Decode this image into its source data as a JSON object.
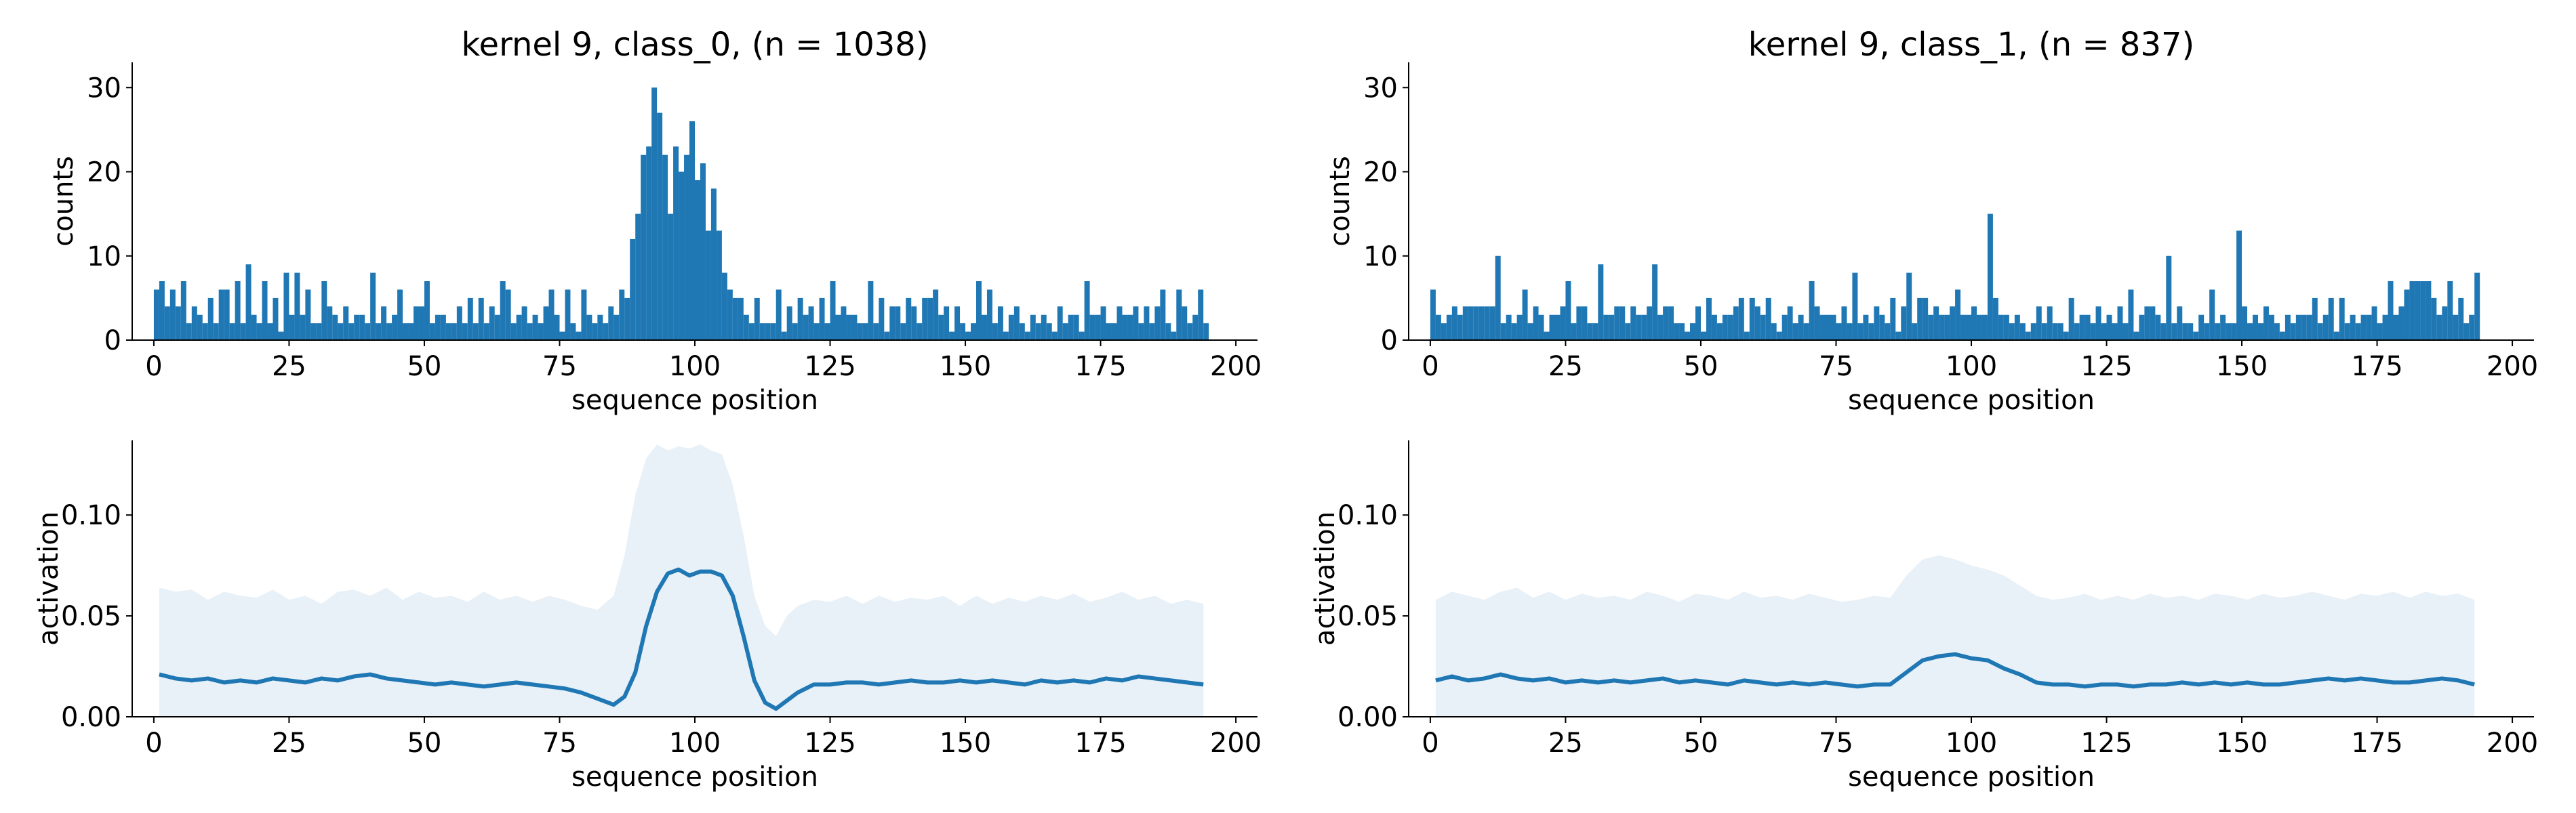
{
  "chart_data": [
    {
      "type": "bar",
      "title": "kernel 9, class_0, (n = 1038)",
      "xlabel": "sequence position",
      "ylabel": "counts",
      "xlim": [
        -4,
        204
      ],
      "ylim": [
        0,
        33
      ],
      "xticks": [
        "0",
        "25",
        "50",
        "75",
        "100",
        "125",
        "150",
        "175",
        "200"
      ],
      "yticks": [
        "0",
        "10",
        "20",
        "30"
      ],
      "grid": false,
      "color": "#1f77b4",
      "x_start": 0,
      "bin_width": 1,
      "values": [
        6,
        7,
        4,
        6,
        4,
        7,
        2,
        4,
        3,
        2,
        5,
        2,
        6,
        6,
        2,
        7,
        2,
        9,
        3,
        2,
        7,
        2,
        5,
        1,
        8,
        3,
        8,
        3,
        6,
        2,
        2,
        7,
        4,
        3,
        2,
        4,
        2,
        3,
        3,
        2,
        8,
        2,
        4,
        2,
        3,
        6,
        2,
        2,
        4,
        4,
        7,
        2,
        3,
        3,
        2,
        2,
        4,
        2,
        5,
        2,
        5,
        2,
        4,
        3,
        7,
        6,
        2,
        3,
        4,
        2,
        3,
        2,
        4,
        6,
        3,
        1,
        6,
        2,
        1,
        6,
        3,
        2,
        3,
        2,
        4,
        3,
        6,
        5,
        12,
        15,
        22,
        23,
        30,
        27,
        22,
        15,
        23,
        20,
        22,
        26,
        19,
        21,
        13,
        18,
        13,
        8,
        6,
        5,
        5,
        3,
        2,
        5,
        2,
        2,
        2,
        6,
        1,
        4,
        2,
        5,
        3,
        4,
        2,
        5,
        2,
        7,
        3,
        4,
        3,
        3,
        2,
        2,
        7,
        2,
        5,
        1,
        4,
        4,
        2,
        5,
        4,
        2,
        5,
        5,
        6,
        3,
        4,
        1,
        4,
        2,
        1,
        2,
        7,
        3,
        6,
        2,
        4,
        1,
        3,
        4,
        2,
        1,
        3,
        2,
        3,
        2,
        1,
        4,
        2,
        3,
        3,
        1,
        7,
        3,
        3,
        4,
        2,
        2,
        4,
        3,
        3,
        4,
        2,
        4,
        2,
        4,
        6,
        2,
        1,
        6,
        4,
        2,
        3,
        6,
        2
      ]
    },
    {
      "type": "bar",
      "title": "kernel 9, class_1, (n = 837)",
      "xlabel": "sequence position",
      "ylabel": "counts",
      "xlim": [
        -4,
        204
      ],
      "ylim": [
        0,
        33
      ],
      "xticks": [
        "0",
        "25",
        "50",
        "75",
        "100",
        "125",
        "150",
        "175",
        "200"
      ],
      "yticks": [
        "0",
        "10",
        "20",
        "30"
      ],
      "grid": false,
      "color": "#1f77b4",
      "x_start": 0,
      "bin_width": 1,
      "values": [
        6,
        3,
        2,
        3,
        4,
        3,
        4,
        4,
        4,
        4,
        4,
        4,
        10,
        2,
        3,
        2,
        3,
        6,
        2,
        4,
        3,
        1,
        3,
        3,
        4,
        7,
        2,
        4,
        4,
        2,
        2,
        9,
        3,
        3,
        4,
        4,
        2,
        4,
        3,
        3,
        4,
        9,
        3,
        4,
        4,
        2,
        2,
        1,
        2,
        4,
        1,
        5,
        3,
        2,
        3,
        3,
        4,
        5,
        1,
        5,
        4,
        3,
        5,
        2,
        1,
        3,
        4,
        2,
        3,
        2,
        7,
        4,
        3,
        3,
        3,
        2,
        4,
        2,
        8,
        2,
        3,
        2,
        4,
        3,
        2,
        5,
        1,
        4,
        8,
        2,
        5,
        5,
        3,
        4,
        3,
        3,
        4,
        6,
        3,
        3,
        4,
        3,
        3,
        15,
        5,
        3,
        3,
        2,
        3,
        2,
        1,
        2,
        4,
        2,
        4,
        2,
        2,
        1,
        5,
        2,
        3,
        3,
        2,
        4,
        2,
        3,
        2,
        4,
        2,
        6,
        1,
        3,
        4,
        4,
        3,
        2,
        10,
        2,
        4,
        2,
        2,
        1,
        3,
        2,
        6,
        2,
        3,
        2,
        2,
        13,
        4,
        2,
        3,
        2,
        4,
        3,
        2,
        1,
        3,
        2,
        3,
        3,
        3,
        5,
        2,
        3,
        5,
        1,
        5,
        2,
        3,
        2,
        3,
        3,
        4,
        2,
        3,
        7,
        3,
        4,
        6,
        7,
        7,
        7,
        7,
        5,
        3,
        4,
        7,
        3,
        5,
        2,
        3,
        8
      ]
    },
    {
      "type": "line",
      "title": "",
      "xlabel": "sequence position",
      "ylabel": "activation",
      "xlim": [
        -4,
        204
      ],
      "ylim": [
        0,
        0.137
      ],
      "xticks": [
        "0",
        "25",
        "50",
        "75",
        "100",
        "125",
        "150",
        "175",
        "200"
      ],
      "yticks": [
        "0.00",
        "0.05",
        "0.10"
      ],
      "grid": false,
      "series": [
        {
          "line_color": "#1f77b4",
          "band_color": "#e8f0f8",
          "x": [
            1,
            4,
            7,
            10,
            13,
            16,
            19,
            22,
            25,
            28,
            31,
            34,
            37,
            40,
            43,
            46,
            49,
            52,
            55,
            58,
            61,
            64,
            67,
            70,
            73,
            76,
            79,
            82,
            85,
            87,
            89,
            91,
            93,
            95,
            97,
            99,
            101,
            103,
            105,
            107,
            109,
            111,
            113,
            115,
            117,
            119,
            122,
            125,
            128,
            131,
            134,
            137,
            140,
            143,
            146,
            149,
            152,
            155,
            158,
            161,
            164,
            167,
            170,
            173,
            176,
            179,
            182,
            185,
            188,
            191,
            194
          ],
          "mean": [
            0.021,
            0.019,
            0.018,
            0.019,
            0.017,
            0.018,
            0.017,
            0.019,
            0.018,
            0.017,
            0.019,
            0.018,
            0.02,
            0.021,
            0.019,
            0.018,
            0.017,
            0.016,
            0.017,
            0.016,
            0.015,
            0.016,
            0.017,
            0.016,
            0.015,
            0.014,
            0.012,
            0.009,
            0.006,
            0.01,
            0.022,
            0.045,
            0.062,
            0.071,
            0.073,
            0.07,
            0.072,
            0.072,
            0.07,
            0.06,
            0.04,
            0.018,
            0.007,
            0.004,
            0.008,
            0.012,
            0.016,
            0.016,
            0.017,
            0.017,
            0.016,
            0.017,
            0.018,
            0.017,
            0.017,
            0.018,
            0.017,
            0.018,
            0.017,
            0.016,
            0.018,
            0.017,
            0.018,
            0.017,
            0.019,
            0.018,
            0.02,
            0.019,
            0.018,
            0.017,
            0.016
          ],
          "upper": [
            0.064,
            0.062,
            0.063,
            0.058,
            0.062,
            0.06,
            0.059,
            0.063,
            0.058,
            0.06,
            0.056,
            0.062,
            0.063,
            0.06,
            0.064,
            0.058,
            0.062,
            0.059,
            0.06,
            0.057,
            0.062,
            0.058,
            0.06,
            0.057,
            0.06,
            0.058,
            0.055,
            0.053,
            0.06,
            0.08,
            0.11,
            0.128,
            0.135,
            0.132,
            0.134,
            0.133,
            0.135,
            0.132,
            0.13,
            0.115,
            0.09,
            0.06,
            0.045,
            0.04,
            0.05,
            0.055,
            0.058,
            0.057,
            0.06,
            0.056,
            0.06,
            0.057,
            0.059,
            0.058,
            0.06,
            0.055,
            0.06,
            0.056,
            0.059,
            0.057,
            0.06,
            0.058,
            0.061,
            0.057,
            0.059,
            0.062,
            0.058,
            0.06,
            0.056,
            0.058,
            0.056
          ],
          "lower": [
            0,
            0,
            0,
            0,
            0,
            0,
            0,
            0,
            0,
            0,
            0,
            0,
            0,
            0,
            0,
            0,
            0,
            0,
            0,
            0,
            0,
            0,
            0,
            0,
            0,
            0,
            0,
            0,
            0,
            0,
            0,
            0,
            0,
            0,
            0,
            0,
            0,
            0,
            0,
            0,
            0,
            0,
            0,
            0,
            0,
            0,
            0,
            0,
            0,
            0,
            0,
            0,
            0,
            0,
            0,
            0,
            0,
            0,
            0,
            0,
            0,
            0,
            0,
            0,
            0,
            0,
            0,
            0,
            0,
            0,
            0
          ]
        }
      ]
    },
    {
      "type": "line",
      "title": "",
      "xlabel": "sequence position",
      "ylabel": "activation",
      "xlim": [
        -4,
        204
      ],
      "ylim": [
        0,
        0.137
      ],
      "xticks": [
        "0",
        "25",
        "50",
        "75",
        "100",
        "125",
        "150",
        "175",
        "200"
      ],
      "yticks": [
        "0.00",
        "0.05",
        "0.10"
      ],
      "grid": false,
      "series": [
        {
          "line_color": "#1f77b4",
          "band_color": "#e8f0f8",
          "x": [
            1,
            4,
            7,
            10,
            13,
            16,
            19,
            22,
            25,
            28,
            31,
            34,
            37,
            40,
            43,
            46,
            49,
            52,
            55,
            58,
            61,
            64,
            67,
            70,
            73,
            76,
            79,
            82,
            85,
            88,
            91,
            94,
            97,
            100,
            103,
            106,
            109,
            112,
            115,
            118,
            121,
            124,
            127,
            130,
            133,
            136,
            139,
            142,
            145,
            148,
            151,
            154,
            157,
            160,
            163,
            166,
            169,
            172,
            175,
            178,
            181,
            184,
            187,
            190,
            193
          ],
          "mean": [
            0.018,
            0.02,
            0.018,
            0.019,
            0.021,
            0.019,
            0.018,
            0.019,
            0.017,
            0.018,
            0.017,
            0.018,
            0.017,
            0.018,
            0.019,
            0.017,
            0.018,
            0.017,
            0.016,
            0.018,
            0.017,
            0.016,
            0.017,
            0.016,
            0.017,
            0.016,
            0.015,
            0.016,
            0.016,
            0.022,
            0.028,
            0.03,
            0.031,
            0.029,
            0.028,
            0.024,
            0.021,
            0.017,
            0.016,
            0.016,
            0.015,
            0.016,
            0.016,
            0.015,
            0.016,
            0.016,
            0.017,
            0.016,
            0.017,
            0.016,
            0.017,
            0.016,
            0.016,
            0.017,
            0.018,
            0.019,
            0.018,
            0.019,
            0.018,
            0.017,
            0.017,
            0.018,
            0.019,
            0.018,
            0.016
          ],
          "upper": [
            0.058,
            0.062,
            0.06,
            0.058,
            0.062,
            0.064,
            0.059,
            0.062,
            0.058,
            0.061,
            0.059,
            0.06,
            0.058,
            0.062,
            0.06,
            0.057,
            0.061,
            0.06,
            0.058,
            0.062,
            0.059,
            0.06,
            0.058,
            0.061,
            0.059,
            0.057,
            0.058,
            0.06,
            0.059,
            0.07,
            0.078,
            0.08,
            0.078,
            0.075,
            0.073,
            0.07,
            0.065,
            0.06,
            0.058,
            0.059,
            0.061,
            0.058,
            0.06,
            0.058,
            0.061,
            0.059,
            0.06,
            0.058,
            0.061,
            0.06,
            0.058,
            0.061,
            0.059,
            0.06,
            0.062,
            0.06,
            0.058,
            0.061,
            0.06,
            0.062,
            0.059,
            0.062,
            0.06,
            0.061,
            0.058
          ],
          "lower": [
            0,
            0,
            0,
            0,
            0,
            0,
            0,
            0,
            0,
            0,
            0,
            0,
            0,
            0,
            0,
            0,
            0,
            0,
            0,
            0,
            0,
            0,
            0,
            0,
            0,
            0,
            0,
            0,
            0,
            0,
            0,
            0,
            0,
            0,
            0,
            0,
            0,
            0,
            0,
            0,
            0,
            0,
            0,
            0,
            0,
            0,
            0,
            0,
            0,
            0,
            0,
            0,
            0,
            0,
            0,
            0,
            0,
            0,
            0,
            0,
            0,
            0,
            0,
            0,
            0
          ]
        }
      ]
    }
  ]
}
